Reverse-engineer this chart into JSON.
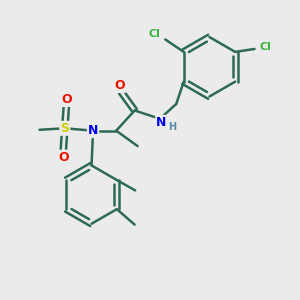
{
  "bg_color": "#ebebeb",
  "bond_color": "#2d6b55",
  "bond_width": 1.8,
  "atom_colors": {
    "Cl": "#3cb33c",
    "N": "#0000ee",
    "O": "#ee1100",
    "S": "#cccc00",
    "C": "#2d6b55",
    "H": "#5588aa"
  },
  "font_size_atom": 9,
  "font_size_label": 8,
  "font_size_small": 7
}
